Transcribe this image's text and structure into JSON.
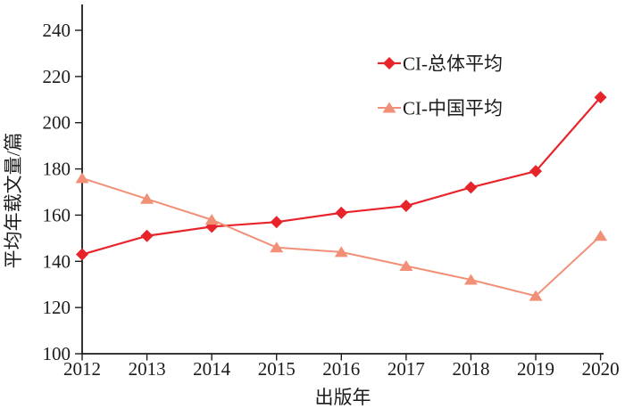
{
  "chart_data": {
    "type": "line",
    "title": "",
    "xlabel": "出版年",
    "ylabel": "平均年载文量/篇",
    "categories": [
      "2012",
      "2013",
      "2014",
      "2015",
      "2016",
      "2017",
      "2018",
      "2019",
      "2020"
    ],
    "series": [
      {
        "name": "CI-总体平均",
        "marker": "diamond",
        "color": "#e8242b",
        "line_width": 2.2,
        "values": [
          143,
          151,
          155,
          157,
          161,
          164,
          172,
          179,
          211
        ]
      },
      {
        "name": "CI-中国平均",
        "marker": "triangle",
        "color": "#f19076",
        "line_width": 2,
        "values": [
          176,
          167,
          158,
          146,
          144,
          138,
          132,
          125,
          151
        ]
      }
    ],
    "ylim": [
      100,
      240
    ],
    "yticks": [
      100,
      120,
      140,
      160,
      180,
      200,
      220,
      240
    ],
    "grid": false,
    "legend_position": "inside-top-center-right",
    "axis_color": "#1c1c1c",
    "text_color": "#1c1c1c",
    "background": "#ffffff"
  }
}
